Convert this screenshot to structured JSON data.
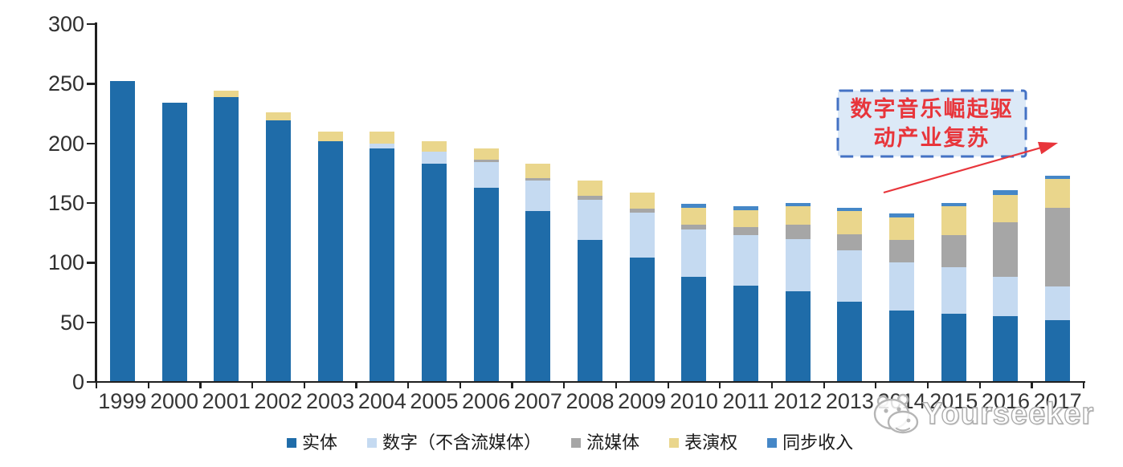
{
  "chart_data": {
    "type": "bar",
    "stacked": true,
    "grid": false,
    "legend_position": "bottom",
    "title": "",
    "xlabel": "",
    "ylabel": "",
    "ylim": [
      0,
      300
    ],
    "yticks": [
      0,
      50,
      100,
      150,
      200,
      250,
      300
    ],
    "categories": [
      "1999",
      "2000",
      "2001",
      "2002",
      "2003",
      "2004",
      "2005",
      "2006",
      "2007",
      "2008",
      "2009",
      "2010",
      "2011",
      "2012",
      "2013",
      "2014",
      "2015",
      "2016",
      "2017"
    ],
    "series": [
      {
        "name": "实体",
        "color": "#1F6CA9",
        "values": [
          252,
          234,
          239,
          219,
          202,
          196,
          183,
          163,
          143,
          119,
          104,
          88,
          81,
          76,
          67,
          60,
          57,
          55,
          52
        ]
      },
      {
        "name": "数字（不含流媒体）",
        "color": "#C5DAF1",
        "values": [
          0,
          0,
          0,
          0,
          0,
          4,
          10,
          21,
          26,
          34,
          38,
          40,
          42,
          44,
          43,
          40,
          39,
          33,
          28
        ]
      },
      {
        "name": "流媒体",
        "color": "#A6A6A6",
        "values": [
          0,
          0,
          0,
          0,
          0,
          0,
          0,
          2,
          2,
          3,
          3,
          4,
          7,
          12,
          14,
          19,
          27,
          46,
          66
        ]
      },
      {
        "name": "表演权",
        "color": "#EAD68C",
        "values": [
          0,
          0,
          5,
          7,
          8,
          10,
          9,
          10,
          12,
          13,
          14,
          14,
          14,
          15,
          19,
          19,
          24,
          23,
          24
        ]
      },
      {
        "name": "同步收入",
        "color": "#4587C7",
        "values": [
          0,
          0,
          0,
          0,
          0,
          0,
          0,
          0,
          0,
          0,
          0,
          3,
          3,
          3,
          3,
          3,
          3,
          4,
          3
        ]
      }
    ]
  },
  "annotation": {
    "line1": "数字音乐崛起驱",
    "line2": "动产业复苏",
    "fill_color": "#DCE9F7",
    "border_color": "#4472C4",
    "text_color": "#E8353B",
    "arrow_color": "#E8353B"
  },
  "watermark": {
    "text": "Yourseeker"
  }
}
